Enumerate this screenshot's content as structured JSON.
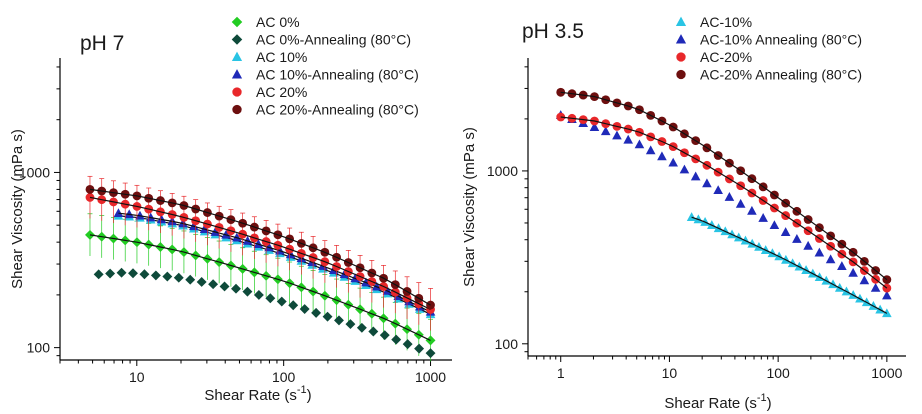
{
  "chart_data": [
    {
      "type": "scatter",
      "title": "pH 7",
      "xlabel": "Shear Rate (s",
      "xlabel_sup": "-1",
      "xlabel_close": ")",
      "ylabel": "Shear Viscosity (mPa s)",
      "xscale": "log",
      "yscale": "log",
      "xlim": [
        3,
        1400
      ],
      "ylim": [
        85,
        4500
      ],
      "x_ticks": [
        {
          "value": 10,
          "label": "10"
        },
        {
          "value": 100,
          "label": "100"
        },
        {
          "value": 1000,
          "label": "1000"
        }
      ],
      "y_ticks": [
        {
          "value": 100,
          "label": "100"
        },
        {
          "value": 1000,
          "label": "1000"
        }
      ],
      "legend_position": "top-right",
      "series": [
        {
          "name": "AC 0%",
          "marker": "diamond",
          "color": "#22cc22",
          "fit": true,
          "error_bars": true,
          "x": [
            4.8,
            10,
            20,
            50,
            100,
            200,
            500,
            1000
          ],
          "y": [
            440,
            400,
            355,
            285,
            240,
            195,
            145,
            110
          ]
        },
        {
          "name": "AC 0%-Annealing (80°C)",
          "marker": "diamond",
          "color": "#0e4a3a",
          "fit": false,
          "error_bars": false,
          "x": [
            5.5,
            8,
            10,
            20,
            50,
            100,
            200,
            500,
            1000
          ],
          "y": [
            262,
            268,
            265,
            250,
            215,
            182,
            150,
            117,
            93
          ]
        },
        {
          "name": "AC 10%",
          "marker": "triangle",
          "color": "#29c4e4",
          "fit": true,
          "error_bars": false,
          "x": [
            7.5,
            10,
            20,
            50,
            100,
            200,
            500,
            1000
          ],
          "y": [
            565,
            555,
            500,
            405,
            340,
            275,
            205,
            155
          ]
        },
        {
          "name": "AC 10%-Annealing (80°C)",
          "marker": "triangle",
          "color": "#1f2ab8",
          "fit": true,
          "error_bars": false,
          "x": [
            7.5,
            10,
            20,
            50,
            100,
            200,
            500,
            1000
          ],
          "y": [
            585,
            570,
            515,
            420,
            352,
            285,
            212,
            160
          ]
        },
        {
          "name": "AC 20%",
          "marker": "circle",
          "color": "#e8272a",
          "fit": true,
          "error_bars": true,
          "x": [
            4.8,
            10,
            20,
            50,
            100,
            200,
            500,
            1000
          ],
          "y": [
            720,
            640,
            560,
            450,
            375,
            305,
            220,
            165
          ]
        },
        {
          "name": "AC 20%-Annealing (80°C)",
          "marker": "circle",
          "color": "#6d0f0f",
          "fit": true,
          "error_bars": false,
          "x": [
            4.8,
            10,
            20,
            50,
            100,
            200,
            500,
            1000
          ],
          "y": [
            800,
            735,
            655,
            520,
            430,
            345,
            245,
            175
          ]
        }
      ]
    },
    {
      "type": "scatter",
      "title": "pH 3.5",
      "xlabel": "Shear Rate (s",
      "xlabel_sup": "-1",
      "xlabel_close": ")",
      "ylabel": "Shear Viscosity (mPa s)",
      "xscale": "log",
      "yscale": "log",
      "xlim": [
        0.5,
        1500
      ],
      "ylim": [
        85,
        4500
      ],
      "x_ticks": [
        {
          "value": 1,
          "label": "1"
        },
        {
          "value": 10,
          "label": "10"
        },
        {
          "value": 100,
          "label": "100"
        },
        {
          "value": 1000,
          "label": "1000"
        }
      ],
      "y_ticks": [
        {
          "value": 100,
          "label": "100"
        },
        {
          "value": 1000,
          "label": "1000"
        }
      ],
      "legend_position": "top-right",
      "series": [
        {
          "name": "AC-10%",
          "marker": "triangle",
          "color": "#29c4e4",
          "fit": true,
          "error_bars": false,
          "x": [
            16,
            20,
            50,
            100,
            200,
            500,
            1000
          ],
          "y": [
            540,
            515,
            395,
            322,
            258,
            190,
            150
          ]
        },
        {
          "name": "AC-10% Annealing (80°C)",
          "marker": "triangle",
          "color": "#1f2ab8",
          "fit": false,
          "error_bars": false,
          "x": [
            1,
            2,
            5,
            10,
            20,
            50,
            100,
            200,
            500,
            1000
          ],
          "y": [
            2100,
            1800,
            1450,
            1150,
            880,
            620,
            470,
            360,
            255,
            190
          ]
        },
        {
          "name": "AC-20%",
          "marker": "circle",
          "color": "#e8272a",
          "fit": true,
          "error_bars": false,
          "x": [
            1,
            2,
            5,
            10,
            20,
            50,
            100,
            200,
            500,
            1000
          ],
          "y": [
            2050,
            1950,
            1700,
            1420,
            1120,
            790,
            590,
            440,
            295,
            210
          ]
        },
        {
          "name": "AC-20% Annealing (80°C)",
          "marker": "circle",
          "color": "#6d0f0f",
          "fit": true,
          "error_bars": false,
          "x": [
            1,
            2,
            5,
            10,
            20,
            50,
            100,
            200,
            500,
            1000
          ],
          "y": [
            2850,
            2700,
            2300,
            1850,
            1420,
            960,
            700,
            510,
            335,
            235
          ]
        }
      ]
    }
  ]
}
